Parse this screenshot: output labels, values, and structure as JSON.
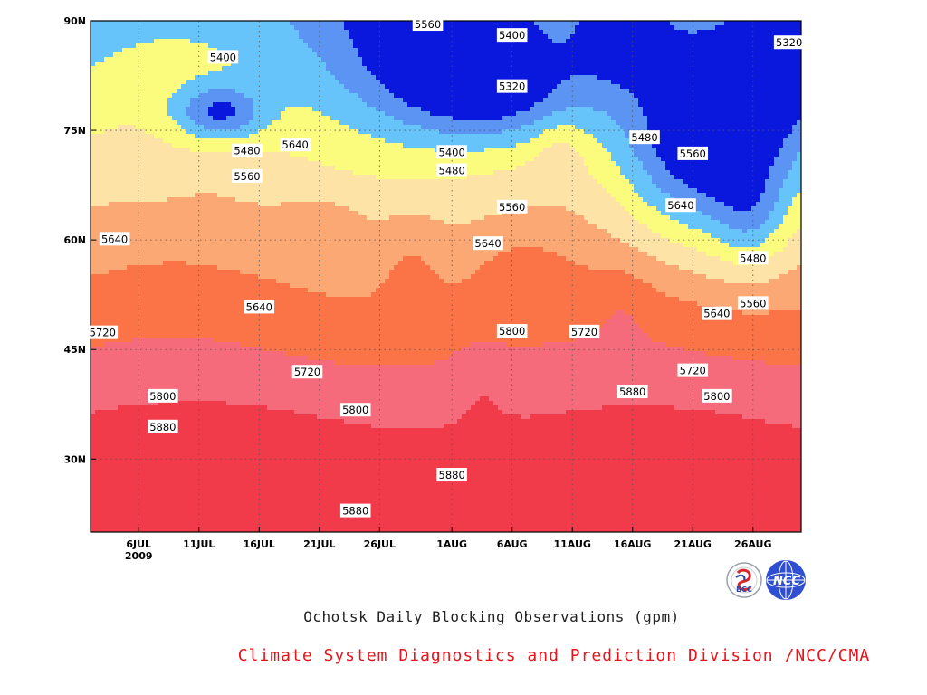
{
  "chart_data": {
    "type": "heatmap",
    "subtype": "filled-contour",
    "title": "Ochotsk Daily Blocking Observations (gpm)",
    "credit": "Climate System Diagnostics and Prediction Division /NCC/CMA",
    "x_axis": {
      "range": [
        "2009-07-02",
        "2009-08-30"
      ],
      "ticks": [
        {
          "date": "2009-07-06",
          "label": "6JUL",
          "sublabel": "2009"
        },
        {
          "date": "2009-07-11",
          "label": "11JUL"
        },
        {
          "date": "2009-07-16",
          "label": "16JUL"
        },
        {
          "date": "2009-07-21",
          "label": "21JUL"
        },
        {
          "date": "2009-07-26",
          "label": "26JUL"
        },
        {
          "date": "2009-08-01",
          "label": "1AUG"
        },
        {
          "date": "2009-08-06",
          "label": "6AUG"
        },
        {
          "date": "2009-08-11",
          "label": "11AUG"
        },
        {
          "date": "2009-08-16",
          "label": "16AUG"
        },
        {
          "date": "2009-08-21",
          "label": "21AUG"
        },
        {
          "date": "2009-08-26",
          "label": "26AUG"
        }
      ]
    },
    "y_axis": {
      "range": [
        20,
        90
      ],
      "ticks": [
        {
          "value": 30,
          "label": "30N"
        },
        {
          "value": 45,
          "label": "45N"
        },
        {
          "value": 60,
          "label": "60N"
        },
        {
          "value": 75,
          "label": "75N"
        },
        {
          "value": 90,
          "label": "90N"
        }
      ]
    },
    "grid": true,
    "levels": [
      5320,
      5400,
      5480,
      5560,
      5640,
      5720,
      5800,
      5880
    ],
    "colors": [
      "#0a18de",
      "#4f5ef2",
      "#5b94f2",
      "#66c4fa",
      "#fbfb7e",
      "#fde3a6",
      "#fba875",
      "#fb7447",
      "#f56b7c",
      "#f23b4a"
    ],
    "contour_labels": [
      {
        "value": "5560",
        "date": "2009-07-30",
        "lat": 89.5
      },
      {
        "value": "5400",
        "date": "2009-08-06",
        "lat": 88.0
      },
      {
        "value": "5320",
        "date": "2009-08-29",
        "lat": 87.0
      },
      {
        "value": "5400",
        "date": "2009-07-13",
        "lat": 85.0
      },
      {
        "value": "5320",
        "date": "2009-08-06",
        "lat": 81.0
      },
      {
        "value": "5480",
        "date": "2009-07-15",
        "lat": 72.2
      },
      {
        "value": "5640",
        "date": "2009-07-19",
        "lat": 73.0
      },
      {
        "value": "5400",
        "date": "2009-08-01",
        "lat": 72.0
      },
      {
        "value": "5480",
        "date": "2009-08-17",
        "lat": 74.0
      },
      {
        "value": "5560",
        "date": "2009-08-21",
        "lat": 71.8
      },
      {
        "value": "5480",
        "date": "2009-08-01",
        "lat": 69.5
      },
      {
        "value": "5560",
        "date": "2009-07-15",
        "lat": 68.7
      },
      {
        "value": "5560",
        "date": "2009-08-06",
        "lat": 64.5
      },
      {
        "value": "5640",
        "date": "2009-08-20",
        "lat": 64.7
      },
      {
        "value": "5640",
        "date": "2009-07-04",
        "lat": 60.1
      },
      {
        "value": "5640",
        "date": "2009-08-04",
        "lat": 59.5
      },
      {
        "value": "5480",
        "date": "2009-08-26",
        "lat": 57.5
      },
      {
        "value": "5640",
        "date": "2009-07-16",
        "lat": 50.8
      },
      {
        "value": "5560",
        "date": "2009-08-26",
        "lat": 51.3
      },
      {
        "value": "5640",
        "date": "2009-08-23",
        "lat": 49.9
      },
      {
        "value": "5720",
        "date": "2009-07-03",
        "lat": 47.3
      },
      {
        "value": "5800",
        "date": "2009-08-06",
        "lat": 47.5
      },
      {
        "value": "5720",
        "date": "2009-08-12",
        "lat": 47.4
      },
      {
        "value": "5720",
        "date": "2009-07-20",
        "lat": 41.9
      },
      {
        "value": "5720",
        "date": "2009-08-21",
        "lat": 42.1
      },
      {
        "value": "5800",
        "date": "2009-07-08",
        "lat": 38.6
      },
      {
        "value": "5880",
        "date": "2009-08-16",
        "lat": 39.2
      },
      {
        "value": "5800",
        "date": "2009-08-23",
        "lat": 38.6
      },
      {
        "value": "5800",
        "date": "2009-07-24",
        "lat": 36.7
      },
      {
        "value": "5880",
        "date": "2009-07-08",
        "lat": 34.4
      },
      {
        "value": "5880",
        "date": "2009-08-01",
        "lat": 27.8
      },
      {
        "value": "5880",
        "date": "2009-07-24",
        "lat": 22.9
      }
    ]
  },
  "logos": [
    {
      "icon": "bcc-logo",
      "text": "BCC"
    },
    {
      "icon": "ncc-logo",
      "text": "NCC"
    }
  ]
}
